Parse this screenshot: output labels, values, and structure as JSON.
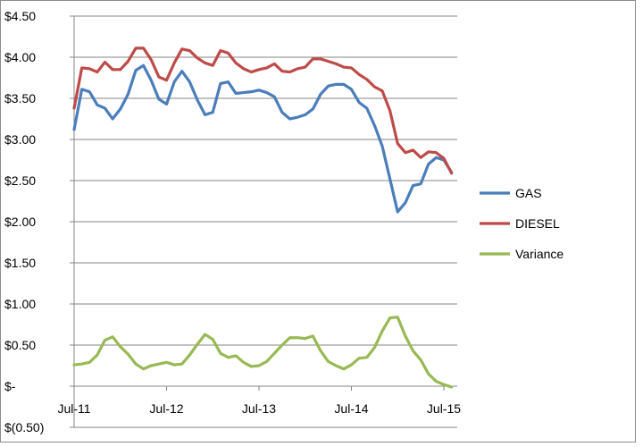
{
  "chart_data": {
    "type": "line",
    "x": [
      "Jul-11",
      "Aug-11",
      "Sep-11",
      "Oct-11",
      "Nov-11",
      "Dec-11",
      "Jan-12",
      "Feb-12",
      "Mar-12",
      "Apr-12",
      "May-12",
      "Jun-12",
      "Jul-12",
      "Aug-12",
      "Sep-12",
      "Oct-12",
      "Nov-12",
      "Dec-12",
      "Jan-13",
      "Feb-13",
      "Mar-13",
      "Apr-13",
      "May-13",
      "Jun-13",
      "Jul-13",
      "Aug-13",
      "Sep-13",
      "Oct-13",
      "Nov-13",
      "Dec-13",
      "Jan-14",
      "Feb-14",
      "Mar-14",
      "Apr-14",
      "May-14",
      "Jun-14",
      "Jul-14",
      "Aug-14",
      "Sep-14",
      "Oct-14",
      "Nov-14",
      "Dec-14",
      "Jan-15",
      "Feb-15",
      "Mar-15",
      "Apr-15",
      "May-15",
      "Jun-15",
      "Jul-15",
      "Aug-15"
    ],
    "x_tick_labels": [
      "Jul-11",
      "Jul-12",
      "Jul-13",
      "Jul-14",
      "Jul-15"
    ],
    "y_tick_labels": [
      "$(0.50)",
      "$-",
      "$0.50",
      "$1.00",
      "$1.50",
      "$2.00",
      "$2.50",
      "$3.00",
      "$3.50",
      "$4.00",
      "$4.50"
    ],
    "ylim": [
      -0.5,
      4.5
    ],
    "grid": true,
    "legend_position": "right",
    "series": [
      {
        "name": "GAS",
        "color": "#4a7ebb",
        "values": [
          3.12,
          3.61,
          3.58,
          3.42,
          3.38,
          3.25,
          3.37,
          3.55,
          3.84,
          3.9,
          3.72,
          3.49,
          3.43,
          3.7,
          3.83,
          3.7,
          3.48,
          3.3,
          3.33,
          3.68,
          3.7,
          3.56,
          3.57,
          3.58,
          3.6,
          3.57,
          3.52,
          3.33,
          3.25,
          3.27,
          3.3,
          3.37,
          3.55,
          3.65,
          3.67,
          3.67,
          3.61,
          3.45,
          3.38,
          3.17,
          2.92,
          2.52,
          2.12,
          2.23,
          2.44,
          2.46,
          2.7,
          2.78,
          2.75,
          2.6
        ]
      },
      {
        "name": "DIESEL",
        "color": "#be4b48",
        "values": [
          3.38,
          3.87,
          3.86,
          3.82,
          3.94,
          3.85,
          3.85,
          3.95,
          4.11,
          4.11,
          3.97,
          3.76,
          3.72,
          3.93,
          4.1,
          4.08,
          3.99,
          3.93,
          3.9,
          4.08,
          4.05,
          3.93,
          3.86,
          3.82,
          3.85,
          3.87,
          3.92,
          3.83,
          3.82,
          3.86,
          3.88,
          3.98,
          3.98,
          3.95,
          3.92,
          3.88,
          3.87,
          3.79,
          3.73,
          3.64,
          3.59,
          3.35,
          2.95,
          2.84,
          2.87,
          2.78,
          2.85,
          2.84,
          2.77,
          2.59
        ]
      },
      {
        "name": "Variance",
        "color": "#98b954",
        "values": [
          0.26,
          0.27,
          0.29,
          0.38,
          0.56,
          0.6,
          0.48,
          0.39,
          0.27,
          0.21,
          0.25,
          0.27,
          0.29,
          0.26,
          0.27,
          0.38,
          0.51,
          0.63,
          0.57,
          0.4,
          0.35,
          0.37,
          0.29,
          0.24,
          0.25,
          0.3,
          0.4,
          0.5,
          0.59,
          0.59,
          0.58,
          0.61,
          0.43,
          0.3,
          0.25,
          0.21,
          0.26,
          0.34,
          0.35,
          0.47,
          0.67,
          0.83,
          0.84,
          0.61,
          0.43,
          0.32,
          0.15,
          0.06,
          0.02,
          -0.01
        ]
      }
    ]
  }
}
